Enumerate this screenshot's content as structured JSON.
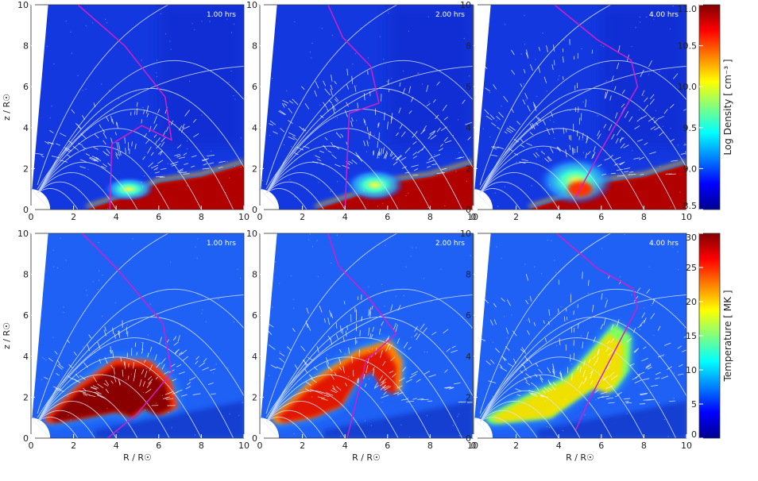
{
  "chart_data": {
    "type": "heatmap",
    "layout": "2 rows x 3 columns",
    "time_labels": [
      "1.00 hrs",
      "2.00 hrs",
      "4.00 hrs"
    ],
    "x_axis": {
      "label": "R / R☉",
      "range": [
        0,
        10
      ],
      "ticks": [
        "0",
        "2",
        "4",
        "6",
        "8",
        "10"
      ]
    },
    "y_axis": {
      "label": "z / R☉",
      "range": [
        0,
        10
      ],
      "ticks": [
        "0",
        "2",
        "4",
        "6",
        "8",
        "10"
      ]
    },
    "overlays": [
      "white magnetic field lines",
      "white velocity arrows",
      "magenta contour"
    ],
    "rows": [
      {
        "quantity": "density",
        "colorbar": {
          "label": "Log Density [ cm⁻³ ]",
          "range": [
            8.5,
            11.0
          ],
          "ticks": [
            "11.0",
            "10.5",
            "10.0",
            "9.5",
            "9.0",
            "8.5"
          ]
        },
        "panels": [
          {
            "time": "1.00 hrs",
            "blob_center": [
              4.6,
              1.0
            ],
            "blob_size": [
              1.2,
              0.6
            ],
            "magenta_contour": [
              [
                2.2,
                10
              ],
              [
                4.4,
                8
              ],
              [
                6.3,
                5.5
              ],
              [
                6.6,
                3.4
              ],
              [
                5.2,
                4.1
              ],
              [
                3.8,
                3.2
              ],
              [
                3.7,
                0
              ]
            ]
          },
          {
            "time": "2.00 hrs",
            "blob_center": [
              5.4,
              1.2
            ],
            "blob_size": [
              1.4,
              0.8
            ],
            "magenta_contour": [
              [
                3.2,
                10
              ],
              [
                3.9,
                8.4
              ],
              [
                5.2,
                7.0
              ],
              [
                5.6,
                5.2
              ],
              [
                4.2,
                4.7
              ],
              [
                4.0,
                0
              ]
            ]
          },
          {
            "time": "4.00 hrs",
            "blob_center": [
              4.8,
              1.4
            ],
            "blob_size": [
              1.8,
              1.2
            ],
            "magenta_contour": [
              [
                3.8,
                10
              ],
              [
                5.8,
                8.3
              ],
              [
                7.4,
                7.3
              ],
              [
                7.7,
                6.0
              ],
              [
                6.1,
                3.1
              ],
              [
                4.8,
                0.6
              ]
            ]
          }
        ]
      },
      {
        "quantity": "temperature",
        "colorbar": {
          "label": "Temperature [ MK ]",
          "range": [
            0,
            30
          ],
          "ticks": [
            "30",
            "25",
            "20",
            "15",
            "10",
            "5",
            "0"
          ]
        },
        "panels": [
          {
            "time": "1.00 hrs",
            "hot_region": [
              [
                0.6,
                1.0
              ],
              [
                2.2,
                2.6
              ],
              [
                4.0,
                3.9
              ],
              [
                5.6,
                3.8
              ],
              [
                6.6,
                2.8
              ],
              [
                6.9,
                1.5
              ],
              [
                6.1,
                1.1
              ],
              [
                5.4,
                1.5
              ],
              [
                4.8,
                1.0
              ],
              [
                4.0,
                1.3
              ],
              [
                2.5,
                1.0
              ],
              [
                0.8,
                0.7
              ]
            ],
            "magenta_contour": [
              [
                2.4,
                10
              ],
              [
                4.1,
                8.2
              ],
              [
                6.2,
                5.6
              ],
              [
                6.6,
                3.2
              ],
              [
                5.0,
                1.2
              ],
              [
                3.6,
                0
              ]
            ]
          },
          {
            "time": "2.00 hrs",
            "hot_region": [
              [
                0.5,
                1.0
              ],
              [
                2.5,
                2.9
              ],
              [
                4.6,
                4.3
              ],
              [
                6.1,
                4.8
              ],
              [
                6.7,
                3.8
              ],
              [
                6.6,
                2.2
              ],
              [
                5.9,
                2.6
              ],
              [
                5.4,
                3.5
              ],
              [
                4.6,
                3.0
              ],
              [
                3.8,
                1.6
              ],
              [
                2.4,
                1.0
              ],
              [
                0.8,
                0.7
              ]
            ],
            "magenta_contour": [
              [
                3.2,
                10
              ],
              [
                3.7,
                8.4
              ],
              [
                5.0,
                7.0
              ],
              [
                6.4,
                5.1
              ],
              [
                5.0,
                3.8
              ],
              [
                4.1,
                0
              ]
            ]
          },
          {
            "time": "4.00 hrs",
            "hot_region": [
              [
                0.5,
                1.0
              ],
              [
                2.5,
                2.1
              ],
              [
                4.4,
                3.0
              ],
              [
                5.8,
                4.6
              ],
              [
                6.6,
                5.6
              ],
              [
                7.4,
                5.0
              ],
              [
                7.3,
                3.3
              ],
              [
                6.6,
                2.3
              ],
              [
                5.8,
                2.6
              ],
              [
                4.8,
                1.9
              ],
              [
                3.6,
                1.0
              ],
              [
                0.8,
                0.7
              ]
            ],
            "magenta_contour": [
              [
                3.9,
                10
              ],
              [
                5.8,
                8.3
              ],
              [
                7.5,
                7.3
              ],
              [
                7.7,
                6.4
              ],
              [
                6.5,
                4.0
              ],
              [
                5.4,
                1.8
              ],
              [
                4.8,
                0.4
              ]
            ]
          }
        ]
      }
    ]
  }
}
